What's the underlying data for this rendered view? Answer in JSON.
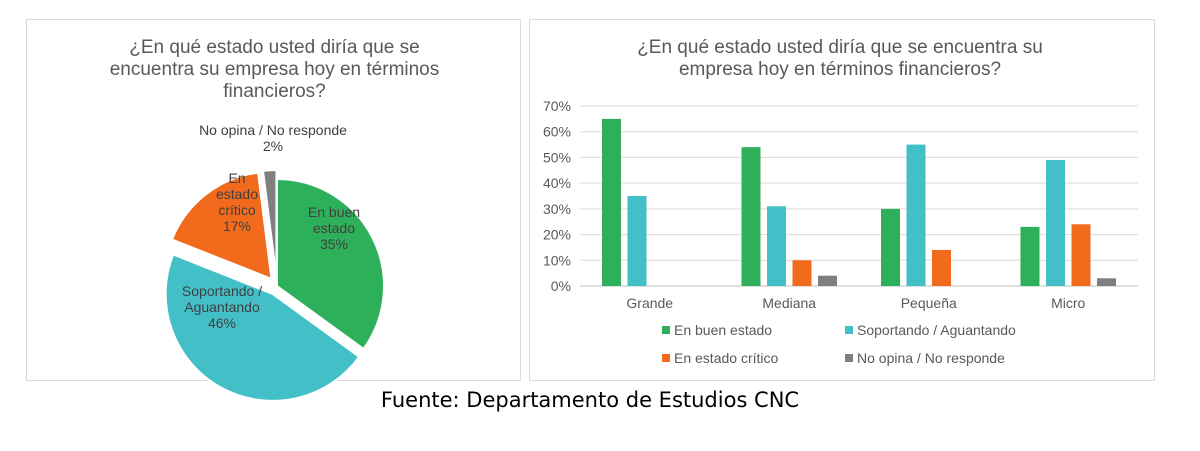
{
  "footer": {
    "source": "Fuente: Departamento de Estudios CNC"
  },
  "chart_data": [
    {
      "type": "pie",
      "title": "¿En qué estado usted diría que se encuentra su empresa hoy en términos financieros?",
      "title_lines": [
        "¿En qué estado usted diría que se",
        "encuentra su empresa hoy en términos",
        "financieros?"
      ],
      "slices": [
        {
          "name": "En buen estado",
          "label_lines": [
            "En buen",
            "estado"
          ],
          "value": 35,
          "value_label": "35%",
          "color": "#2eb05a",
          "exploded": false
        },
        {
          "name": "Soportando / Aguantando",
          "label_lines": [
            "Soportando /",
            "Aguantando"
          ],
          "value": 46,
          "value_label": "46%",
          "color": "#43bfc7",
          "exploded": true
        },
        {
          "name": "En estado crítico",
          "label_lines": [
            "En",
            "estado",
            "crítico"
          ],
          "value": 17,
          "value_label": "17%",
          "color": "#f26b1d",
          "exploded": true
        },
        {
          "name": "No opina / No responde",
          "label_lines": [
            "No opina / No responde"
          ],
          "value": 2,
          "value_label": "2%",
          "color": "#7f7f7f",
          "exploded": true
        }
      ]
    },
    {
      "type": "bar",
      "title": "¿En qué estado usted diría que se encuentra su empresa hoy en términos financieros?",
      "title_lines": [
        "¿En qué estado usted diría que se encuentra su",
        "empresa hoy en términos financieros?"
      ],
      "categories": [
        "Grande",
        "Mediana",
        "Pequeña",
        "Micro"
      ],
      "ylim": [
        0,
        70
      ],
      "yticks": [
        "0%",
        "10%",
        "20%",
        "30%",
        "40%",
        "50%",
        "60%",
        "70%"
      ],
      "grid": true,
      "legend_position": "bottom",
      "series": [
        {
          "name": "En buen estado",
          "color": "#2eb05a",
          "values": [
            65,
            54,
            30,
            23
          ]
        },
        {
          "name": "Soportando / Aguantando",
          "color": "#43bfc7",
          "values": [
            35,
            31,
            55,
            49
          ]
        },
        {
          "name": "En estado crítico",
          "color": "#f26b1d",
          "values": [
            0,
            10,
            14,
            24
          ]
        },
        {
          "name": "No opina / No responde",
          "color": "#7f7f7f",
          "values": [
            0,
            4,
            0,
            3
          ]
        }
      ]
    }
  ]
}
